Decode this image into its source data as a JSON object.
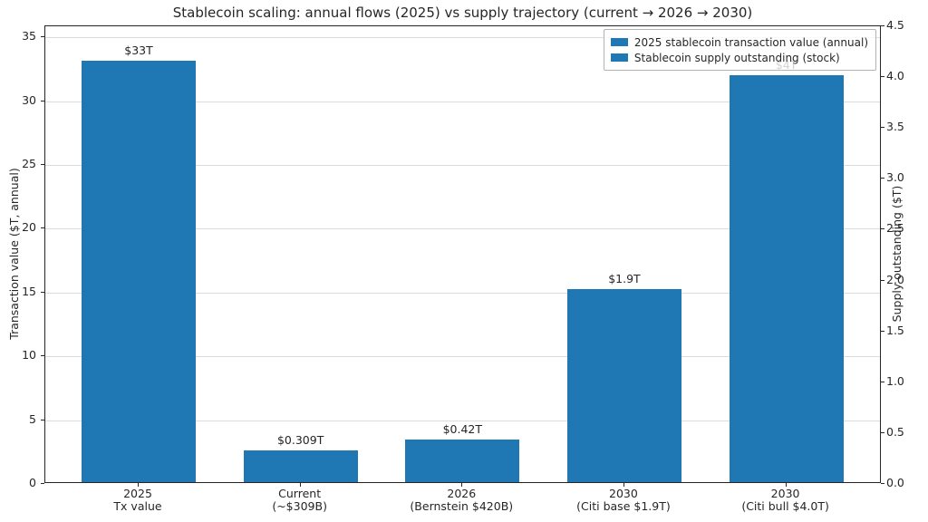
{
  "chart_data": {
    "type": "bar",
    "title": "Stablecoin scaling: annual flows (2025) vs supply trajectory (current → 2026 → 2030)",
    "ylabel_left": "Transaction value ($T, annual)",
    "ylabel_right": "Supply outstanding ($T)",
    "categories": [
      [
        "2025",
        "Tx value"
      ],
      [
        "Current",
        "(~$309B)"
      ],
      [
        "2026",
        "(Bernstein $420B)"
      ],
      [
        "2030",
        "(Citi base $1.9T)"
      ],
      [
        "2030",
        "(Citi bull $4.0T)"
      ]
    ],
    "series": [
      {
        "name": "2025 stablecoin transaction value (annual)",
        "axis": "left",
        "values": [
          33,
          null,
          null,
          null,
          null
        ]
      },
      {
        "name": "Stablecoin supply outstanding (stock)",
        "axis": "right",
        "values": [
          null,
          0.309,
          0.42,
          1.9,
          4.0
        ]
      }
    ],
    "bar_labels": [
      "$33T",
      "$0.309T",
      "$0.42T",
      "$1.9T",
      "$4T"
    ],
    "bar_color": "#1f77b4",
    "left_axis": {
      "ticks": [
        0,
        5,
        10,
        15,
        20,
        25,
        30,
        35
      ],
      "min": 0,
      "max": 35.86
    },
    "right_axis": {
      "tick_labels": [
        "0.0",
        "0.5",
        "1.0",
        "1.5",
        "2.0",
        "2.5",
        "3.0",
        "3.5",
        "4.0",
        "4.5"
      ],
      "ticks": [
        0,
        0.5,
        1.0,
        1.5,
        2.0,
        2.5,
        3.0,
        3.5,
        4.0,
        4.5
      ],
      "min": 0,
      "max": 4.5
    },
    "grid": true,
    "legend_position": "upper right",
    "legend": [
      {
        "label": "2025 stablecoin transaction value (annual)",
        "color": "#1f77b4"
      },
      {
        "label": "Stablecoin supply outstanding (stock)",
        "color": "#1f77b4"
      }
    ]
  }
}
